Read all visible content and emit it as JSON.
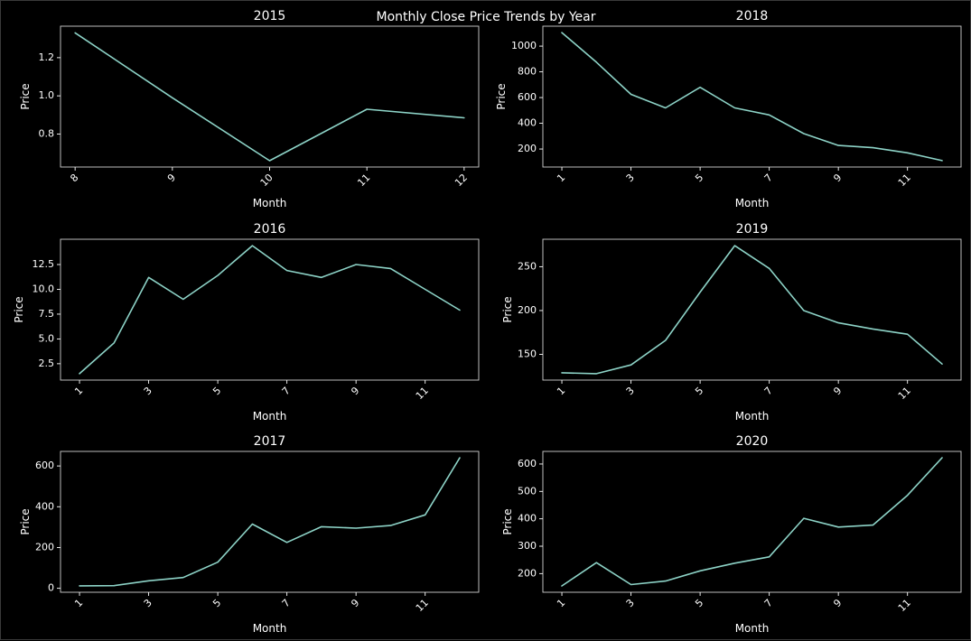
{
  "figure": {
    "suptitle": "Monthly Close Price Trends by Year",
    "line_color": "#8dd3c7",
    "background": "#000000",
    "text_color": "#ffffff"
  },
  "chart_data": [
    {
      "type": "line",
      "title": "2015",
      "xlabel": "Month",
      "ylabel": "Price",
      "x": [
        8,
        9,
        10,
        11,
        12
      ],
      "values": [
        1.33,
        0.99,
        0.66,
        0.93,
        0.885
      ],
      "xticks": [
        8,
        9,
        10,
        11,
        12
      ],
      "xtick_labels": [
        "8",
        "9",
        "10",
        "11",
        "12"
      ],
      "yticks": [
        0.8,
        1.0,
        1.2
      ],
      "ytick_labels": [
        "0.8",
        "1.0",
        "1.2"
      ],
      "xlim": [
        7.85,
        12.15
      ],
      "ylim": [
        0.627,
        1.365
      ]
    },
    {
      "type": "line",
      "title": "2018",
      "xlabel": "Month",
      "ylabel": "Price",
      "x": [
        1,
        2,
        3,
        4,
        5,
        6,
        7,
        8,
        9,
        10,
        11,
        12
      ],
      "values": [
        1105,
        875,
        625,
        520,
        680,
        520,
        465,
        320,
        228,
        210,
        170,
        110
      ],
      "xticks": [
        1,
        3,
        5,
        7,
        9,
        11
      ],
      "xtick_labels": [
        "1",
        "3",
        "5",
        "7",
        "9",
        "11"
      ],
      "yticks": [
        200,
        400,
        600,
        800,
        1000
      ],
      "ytick_labels": [
        "200",
        "400",
        "600",
        "800",
        "1000"
      ],
      "xlim": [
        0.45,
        12.55
      ],
      "ylim": [
        60,
        1155
      ]
    },
    {
      "type": "line",
      "title": "2016",
      "xlabel": "Month",
      "ylabel": "Price",
      "x": [
        1,
        2,
        3,
        4,
        5,
        6,
        7,
        8,
        9,
        10,
        11,
        12
      ],
      "values": [
        1.5,
        4.6,
        11.2,
        9.0,
        11.4,
        14.4,
        11.9,
        11.2,
        12.5,
        12.1,
        10.0,
        7.9
      ],
      "xticks": [
        1,
        3,
        5,
        7,
        9,
        11
      ],
      "xtick_labels": [
        "1",
        "3",
        "5",
        "7",
        "9",
        "11"
      ],
      "yticks": [
        2.5,
        5.0,
        7.5,
        10.0,
        12.5
      ],
      "ytick_labels": [
        "2.5",
        "5.0",
        "7.5",
        "10.0",
        "12.5"
      ],
      "xlim": [
        0.45,
        12.55
      ],
      "ylim": [
        0.85,
        15.05
      ]
    },
    {
      "type": "line",
      "title": "2019",
      "xlabel": "Month",
      "ylabel": "Price",
      "x": [
        1,
        2,
        3,
        4,
        5,
        6,
        7,
        8,
        9,
        10,
        11,
        12
      ],
      "values": [
        129,
        128,
        138,
        166,
        221,
        274,
        248,
        200,
        186,
        179,
        173,
        139
      ],
      "xticks": [
        1,
        3,
        5,
        7,
        9,
        11
      ],
      "xtick_labels": [
        "1",
        "3",
        "5",
        "7",
        "9",
        "11"
      ],
      "yticks": [
        150,
        200,
        250
      ],
      "ytick_labels": [
        "150",
        "200",
        "250"
      ],
      "xlim": [
        0.45,
        12.55
      ],
      "ylim": [
        120.7,
        281.3
      ]
    },
    {
      "type": "line",
      "title": "2017",
      "xlabel": "Month",
      "ylabel": "Price",
      "x": [
        1,
        2,
        3,
        4,
        5,
        6,
        7,
        8,
        9,
        10,
        11,
        12
      ],
      "values": [
        12,
        13,
        37,
        53,
        128,
        315,
        225,
        302,
        295,
        308,
        360,
        640
      ],
      "xticks": [
        1,
        3,
        5,
        7,
        9,
        11
      ],
      "xtick_labels": [
        "1",
        "3",
        "5",
        "7",
        "9",
        "11"
      ],
      "yticks": [
        0,
        200,
        400,
        600
      ],
      "ytick_labels": [
        "0",
        "200",
        "400",
        "600"
      ],
      "xlim": [
        0.45,
        12.55
      ],
      "ylim": [
        -19.4,
        671.4
      ]
    },
    {
      "type": "line",
      "title": "2020",
      "xlabel": "Month",
      "ylabel": "Price",
      "x": [
        1,
        2,
        3,
        4,
        5,
        6,
        7,
        8,
        9,
        10,
        11,
        12
      ],
      "values": [
        155,
        240,
        160,
        173,
        210,
        238,
        261,
        402,
        370,
        377,
        486,
        623
      ],
      "xticks": [
        1,
        3,
        5,
        7,
        9,
        11
      ],
      "xtick_labels": [
        "1",
        "3",
        "5",
        "7",
        "9",
        "11"
      ],
      "yticks": [
        200,
        300,
        400,
        500,
        600
      ],
      "ytick_labels": [
        "200",
        "300",
        "400",
        "500",
        "600"
      ],
      "xlim": [
        0.45,
        12.55
      ],
      "ylim": [
        132,
        646
      ]
    }
  ]
}
